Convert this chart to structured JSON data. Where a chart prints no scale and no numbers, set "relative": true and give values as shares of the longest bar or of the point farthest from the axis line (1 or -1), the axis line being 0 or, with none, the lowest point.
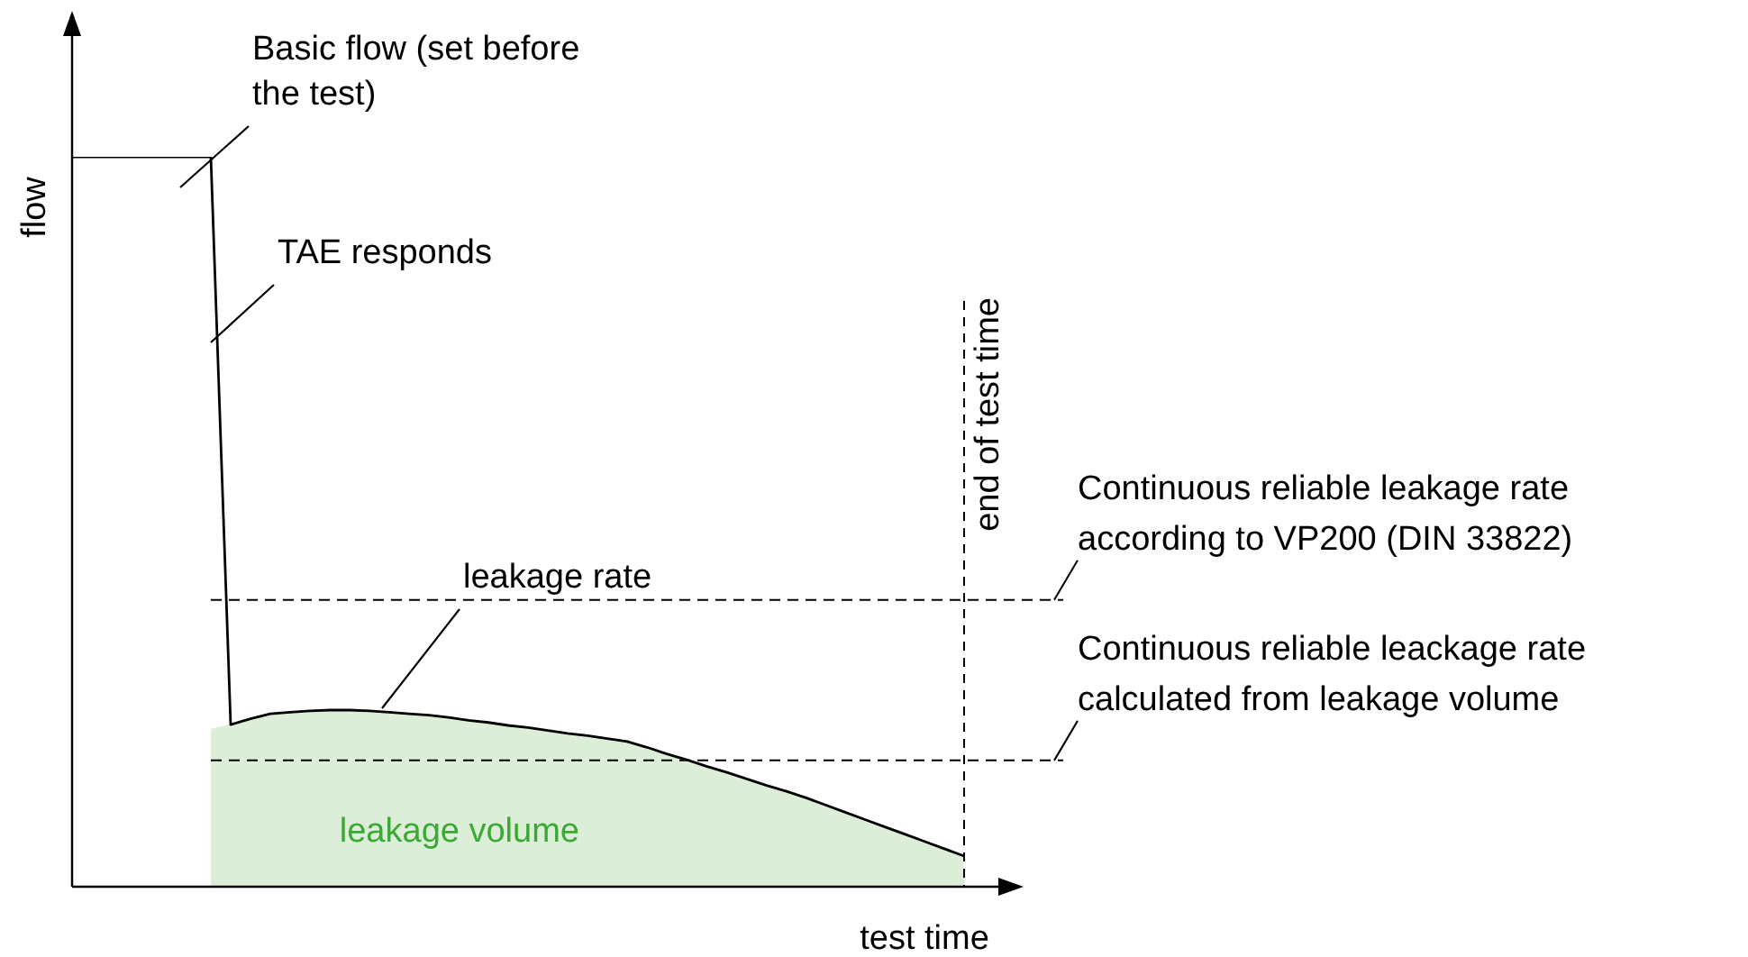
{
  "chart_data": {
    "type": "line",
    "relative": true,
    "xlabel": "test time",
    "ylabel": "flow",
    "legend": false,
    "categories": [
      null,
      null,
      null,
      null,
      null,
      null,
      null,
      null,
      null,
      null,
      null,
      null,
      null,
      null,
      null,
      null,
      null,
      null,
      null,
      null,
      null,
      null,
      null,
      null,
      null,
      null,
      null,
      null,
      null,
      null,
      null,
      null,
      null,
      null,
      null,
      null,
      null,
      null,
      null,
      null,
      null,
      null,
      null,
      null,
      null,
      null
    ],
    "series": [
      {
        "color": "#000000",
        "values": [
          1,
          1,
          1,
          1,
          1,
          1,
          1,
          1,
          0.222,
          0.23,
          0.237,
          0.239,
          0.241,
          0.242,
          0.242,
          0.241,
          0.239,
          0.237,
          0.235,
          0.232,
          0.228,
          0.225,
          0.221,
          0.218,
          0.214,
          0.21,
          0.207,
          0.203,
          0.199,
          0.191,
          0.182,
          0.174,
          0.165,
          0.157,
          0.148,
          0.139,
          0.131,
          0.122,
          0.112,
          0.102,
          0.092,
          0.082,
          0.072,
          0.062,
          0.052,
          0.042
        ]
      },
      {
        "type": "area",
        "name": "leakage volume",
        "color": "#dcedd8",
        "values": [
          null,
          null,
          null,
          null,
          null,
          null,
          null,
          0.215,
          0.222,
          0.23,
          0.237,
          0.239,
          0.241,
          0.242,
          0.242,
          0.241,
          0.239,
          0.237,
          0.235,
          0.232,
          0.228,
          0.225,
          0.221,
          0.218,
          0.214,
          0.21,
          0.207,
          0.203,
          0.199,
          0.191,
          0.182,
          0.174,
          0.165,
          0.157,
          0.148,
          0.139,
          0.131,
          0.122,
          0.112,
          0.102,
          0.092,
          0.082,
          0.072,
          0.062,
          0.052,
          0.042
        ]
      }
    ],
    "ref_lines": [
      {
        "axis": "y",
        "value": 0.393,
        "label": "Continuous reliable leakage rate according to VP200 (DIN 33822)",
        "line_style": "dashed"
      },
      {
        "axis": "y",
        "value": 0.173,
        "label": "Continuous reliable leackage rate calculated from leakage volume",
        "line_style": "dashed"
      }
    ],
    "annotations": [
      "Basic flow (set before the test)",
      "TAE responds",
      "leakage rate",
      "end of test time"
    ]
  }
}
